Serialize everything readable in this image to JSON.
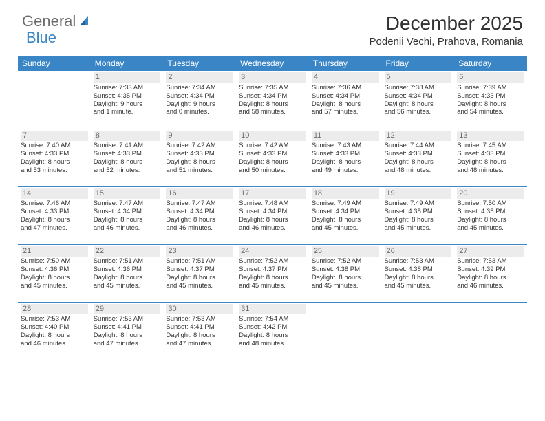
{
  "logo": {
    "word1": "General",
    "word2": "Blue"
  },
  "header": {
    "month_title": "December 2025",
    "location": "Podenii Vechi, Prahova, Romania"
  },
  "calendar": {
    "type": "table",
    "header_bg": "#3a85c6",
    "header_fg": "#ffffff",
    "days_of_week": [
      "Sunday",
      "Monday",
      "Tuesday",
      "Wednesday",
      "Thursday",
      "Friday",
      "Saturday"
    ],
    "weeks": [
      [
        null,
        {
          "n": "1",
          "sr": "Sunrise: 7:33 AM",
          "ss": "Sunset: 4:35 PM",
          "d1": "Daylight: 9 hours",
          "d2": "and 1 minute."
        },
        {
          "n": "2",
          "sr": "Sunrise: 7:34 AM",
          "ss": "Sunset: 4:34 PM",
          "d1": "Daylight: 9 hours",
          "d2": "and 0 minutes."
        },
        {
          "n": "3",
          "sr": "Sunrise: 7:35 AM",
          "ss": "Sunset: 4:34 PM",
          "d1": "Daylight: 8 hours",
          "d2": "and 58 minutes."
        },
        {
          "n": "4",
          "sr": "Sunrise: 7:36 AM",
          "ss": "Sunset: 4:34 PM",
          "d1": "Daylight: 8 hours",
          "d2": "and 57 minutes."
        },
        {
          "n": "5",
          "sr": "Sunrise: 7:38 AM",
          "ss": "Sunset: 4:34 PM",
          "d1": "Daylight: 8 hours",
          "d2": "and 56 minutes."
        },
        {
          "n": "6",
          "sr": "Sunrise: 7:39 AM",
          "ss": "Sunset: 4:33 PM",
          "d1": "Daylight: 8 hours",
          "d2": "and 54 minutes."
        }
      ],
      [
        {
          "n": "7",
          "sr": "Sunrise: 7:40 AM",
          "ss": "Sunset: 4:33 PM",
          "d1": "Daylight: 8 hours",
          "d2": "and 53 minutes."
        },
        {
          "n": "8",
          "sr": "Sunrise: 7:41 AM",
          "ss": "Sunset: 4:33 PM",
          "d1": "Daylight: 8 hours",
          "d2": "and 52 minutes."
        },
        {
          "n": "9",
          "sr": "Sunrise: 7:42 AM",
          "ss": "Sunset: 4:33 PM",
          "d1": "Daylight: 8 hours",
          "d2": "and 51 minutes."
        },
        {
          "n": "10",
          "sr": "Sunrise: 7:42 AM",
          "ss": "Sunset: 4:33 PM",
          "d1": "Daylight: 8 hours",
          "d2": "and 50 minutes."
        },
        {
          "n": "11",
          "sr": "Sunrise: 7:43 AM",
          "ss": "Sunset: 4:33 PM",
          "d1": "Daylight: 8 hours",
          "d2": "and 49 minutes."
        },
        {
          "n": "12",
          "sr": "Sunrise: 7:44 AM",
          "ss": "Sunset: 4:33 PM",
          "d1": "Daylight: 8 hours",
          "d2": "and 48 minutes."
        },
        {
          "n": "13",
          "sr": "Sunrise: 7:45 AM",
          "ss": "Sunset: 4:33 PM",
          "d1": "Daylight: 8 hours",
          "d2": "and 48 minutes."
        }
      ],
      [
        {
          "n": "14",
          "sr": "Sunrise: 7:46 AM",
          "ss": "Sunset: 4:33 PM",
          "d1": "Daylight: 8 hours",
          "d2": "and 47 minutes."
        },
        {
          "n": "15",
          "sr": "Sunrise: 7:47 AM",
          "ss": "Sunset: 4:34 PM",
          "d1": "Daylight: 8 hours",
          "d2": "and 46 minutes."
        },
        {
          "n": "16",
          "sr": "Sunrise: 7:47 AM",
          "ss": "Sunset: 4:34 PM",
          "d1": "Daylight: 8 hours",
          "d2": "and 46 minutes."
        },
        {
          "n": "17",
          "sr": "Sunrise: 7:48 AM",
          "ss": "Sunset: 4:34 PM",
          "d1": "Daylight: 8 hours",
          "d2": "and 46 minutes."
        },
        {
          "n": "18",
          "sr": "Sunrise: 7:49 AM",
          "ss": "Sunset: 4:34 PM",
          "d1": "Daylight: 8 hours",
          "d2": "and 45 minutes."
        },
        {
          "n": "19",
          "sr": "Sunrise: 7:49 AM",
          "ss": "Sunset: 4:35 PM",
          "d1": "Daylight: 8 hours",
          "d2": "and 45 minutes."
        },
        {
          "n": "20",
          "sr": "Sunrise: 7:50 AM",
          "ss": "Sunset: 4:35 PM",
          "d1": "Daylight: 8 hours",
          "d2": "and 45 minutes."
        }
      ],
      [
        {
          "n": "21",
          "sr": "Sunrise: 7:50 AM",
          "ss": "Sunset: 4:36 PM",
          "d1": "Daylight: 8 hours",
          "d2": "and 45 minutes."
        },
        {
          "n": "22",
          "sr": "Sunrise: 7:51 AM",
          "ss": "Sunset: 4:36 PM",
          "d1": "Daylight: 8 hours",
          "d2": "and 45 minutes."
        },
        {
          "n": "23",
          "sr": "Sunrise: 7:51 AM",
          "ss": "Sunset: 4:37 PM",
          "d1": "Daylight: 8 hours",
          "d2": "and 45 minutes."
        },
        {
          "n": "24",
          "sr": "Sunrise: 7:52 AM",
          "ss": "Sunset: 4:37 PM",
          "d1": "Daylight: 8 hours",
          "d2": "and 45 minutes."
        },
        {
          "n": "25",
          "sr": "Sunrise: 7:52 AM",
          "ss": "Sunset: 4:38 PM",
          "d1": "Daylight: 8 hours",
          "d2": "and 45 minutes."
        },
        {
          "n": "26",
          "sr": "Sunrise: 7:53 AM",
          "ss": "Sunset: 4:38 PM",
          "d1": "Daylight: 8 hours",
          "d2": "and 45 minutes."
        },
        {
          "n": "27",
          "sr": "Sunrise: 7:53 AM",
          "ss": "Sunset: 4:39 PM",
          "d1": "Daylight: 8 hours",
          "d2": "and 46 minutes."
        }
      ],
      [
        {
          "n": "28",
          "sr": "Sunrise: 7:53 AM",
          "ss": "Sunset: 4:40 PM",
          "d1": "Daylight: 8 hours",
          "d2": "and 46 minutes."
        },
        {
          "n": "29",
          "sr": "Sunrise: 7:53 AM",
          "ss": "Sunset: 4:41 PM",
          "d1": "Daylight: 8 hours",
          "d2": "and 47 minutes."
        },
        {
          "n": "30",
          "sr": "Sunrise: 7:53 AM",
          "ss": "Sunset: 4:41 PM",
          "d1": "Daylight: 8 hours",
          "d2": "and 47 minutes."
        },
        {
          "n": "31",
          "sr": "Sunrise: 7:54 AM",
          "ss": "Sunset: 4:42 PM",
          "d1": "Daylight: 8 hours",
          "d2": "and 48 minutes."
        },
        null,
        null,
        null
      ]
    ]
  }
}
